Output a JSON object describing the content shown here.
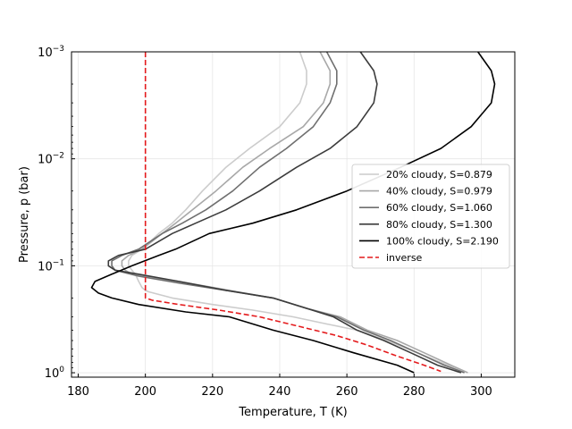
{
  "chart_data": {
    "type": "line",
    "xlabel": "Temperature, T (K)",
    "ylabel": "Pressure, p (bar)",
    "xlim": [
      178,
      310
    ],
    "ylim": [
      1.1,
      0.001
    ],
    "y_scale": "log",
    "y_inverted": true,
    "grid": true,
    "legend_position": "center-right",
    "x_ticks": [
      {
        "value": 180,
        "label": "180"
      },
      {
        "value": 200,
        "label": "200"
      },
      {
        "value": 220,
        "label": "220"
      },
      {
        "value": 240,
        "label": "240"
      },
      {
        "value": 260,
        "label": "260"
      },
      {
        "value": 280,
        "label": "280"
      },
      {
        "value": 300,
        "label": "300"
      }
    ],
    "y_ticks": [
      {
        "value": 0.001,
        "base": "10",
        "exp": "−3"
      },
      {
        "value": 0.01,
        "base": "10",
        "exp": "−2"
      },
      {
        "value": 0.1,
        "base": "10",
        "exp": "−1"
      },
      {
        "value": 1,
        "base": "10",
        "exp": "0"
      }
    ],
    "series": [
      {
        "name": "20% cloudy, S=0.879",
        "color": "#cccccc",
        "dash": "solid",
        "points": [
          [
            246,
            0.001
          ],
          [
            248,
            0.0015
          ],
          [
            248,
            0.002
          ],
          [
            246,
            0.003
          ],
          [
            240,
            0.005
          ],
          [
            231,
            0.008
          ],
          [
            224,
            0.012
          ],
          [
            217,
            0.02
          ],
          [
            212,
            0.03
          ],
          [
            208,
            0.04
          ],
          [
            204,
            0.05
          ],
          [
            199,
            0.07
          ],
          [
            196,
            0.08
          ],
          [
            195,
            0.09
          ],
          [
            195,
            0.1
          ],
          [
            196,
            0.11
          ],
          [
            197,
            0.12
          ],
          [
            198,
            0.14
          ],
          [
            199,
            0.16
          ],
          [
            200,
            0.17
          ],
          [
            201,
            0.175
          ],
          [
            208,
            0.2
          ],
          [
            220,
            0.23
          ],
          [
            232,
            0.26
          ],
          [
            244,
            0.3
          ],
          [
            254,
            0.35
          ],
          [
            263,
            0.4
          ],
          [
            272,
            0.5
          ],
          [
            281,
            0.65
          ],
          [
            290,
            0.85
          ],
          [
            295,
            1.0
          ]
        ]
      },
      {
        "name": "40% cloudy, S=0.979",
        "color": "#a8a8a8",
        "dash": "solid",
        "points": [
          [
            252,
            0.001
          ],
          [
            255,
            0.0015
          ],
          [
            255,
            0.002
          ],
          [
            253,
            0.003
          ],
          [
            247,
            0.005
          ],
          [
            237,
            0.008
          ],
          [
            229,
            0.012
          ],
          [
            221,
            0.02
          ],
          [
            214,
            0.03
          ],
          [
            209,
            0.04
          ],
          [
            205,
            0.05
          ],
          [
            199,
            0.07
          ],
          [
            195,
            0.08
          ],
          [
            193,
            0.09
          ],
          [
            193,
            0.1
          ],
          [
            194,
            0.11
          ],
          [
            196,
            0.12
          ],
          [
            199,
            0.125
          ],
          [
            210,
            0.14
          ],
          [
            225,
            0.17
          ],
          [
            238,
            0.2
          ],
          [
            248,
            0.25
          ],
          [
            258,
            0.3
          ],
          [
            266,
            0.4
          ],
          [
            275,
            0.5
          ],
          [
            283,
            0.65
          ],
          [
            291,
            0.85
          ],
          [
            296,
            1.0
          ]
        ]
      },
      {
        "name": "60% cloudy, S=1.060",
        "color": "#6f6f6f",
        "dash": "solid",
        "points": [
          [
            254,
            0.001
          ],
          [
            257,
            0.0015
          ],
          [
            257,
            0.002
          ],
          [
            255,
            0.003
          ],
          [
            250,
            0.005
          ],
          [
            242,
            0.008
          ],
          [
            234,
            0.012
          ],
          [
            226,
            0.02
          ],
          [
            218,
            0.03
          ],
          [
            211,
            0.04
          ],
          [
            205,
            0.05
          ],
          [
            198,
            0.07
          ],
          [
            193,
            0.08
          ],
          [
            190,
            0.09
          ],
          [
            190,
            0.1
          ],
          [
            191,
            0.11
          ],
          [
            198,
            0.125
          ],
          [
            210,
            0.145
          ],
          [
            224,
            0.17
          ],
          [
            238,
            0.2
          ],
          [
            248,
            0.25
          ],
          [
            257,
            0.3
          ],
          [
            265,
            0.4
          ],
          [
            273,
            0.5
          ],
          [
            281,
            0.65
          ],
          [
            289,
            0.85
          ],
          [
            295,
            1.0
          ]
        ]
      },
      {
        "name": "80% cloudy, S=1.300",
        "color": "#3c3c3c",
        "dash": "solid",
        "points": [
          [
            264,
            0.001
          ],
          [
            268,
            0.0015
          ],
          [
            269,
            0.002
          ],
          [
            268,
            0.003
          ],
          [
            263,
            0.005
          ],
          [
            255,
            0.008
          ],
          [
            245,
            0.012
          ],
          [
            234,
            0.02
          ],
          [
            224,
            0.03
          ],
          [
            215,
            0.04
          ],
          [
            208,
            0.05
          ],
          [
            200,
            0.07
          ],
          [
            192,
            0.08
          ],
          [
            189,
            0.09
          ],
          [
            189,
            0.1
          ],
          [
            191,
            0.11
          ],
          [
            198,
            0.12
          ],
          [
            210,
            0.14
          ],
          [
            224,
            0.17
          ],
          [
            238,
            0.2
          ],
          [
            248,
            0.25
          ],
          [
            256,
            0.3
          ],
          [
            263,
            0.4
          ],
          [
            271,
            0.5
          ],
          [
            279,
            0.65
          ],
          [
            287,
            0.85
          ],
          [
            294,
            1.0
          ]
        ]
      },
      {
        "name": "100% cloudy, S=2.190",
        "color": "#000000",
        "dash": "solid",
        "points": [
          [
            299,
            0.001
          ],
          [
            303,
            0.0015
          ],
          [
            304,
            0.002
          ],
          [
            303,
            0.003
          ],
          [
            297,
            0.005
          ],
          [
            288,
            0.008
          ],
          [
            276,
            0.012
          ],
          [
            260,
            0.02
          ],
          [
            245,
            0.03
          ],
          [
            232,
            0.04
          ],
          [
            219,
            0.05
          ],
          [
            209,
            0.07
          ],
          [
            204,
            0.08
          ],
          [
            196,
            0.1
          ],
          [
            190,
            0.12
          ],
          [
            185,
            0.14
          ],
          [
            184,
            0.16
          ],
          [
            186,
            0.18
          ],
          [
            190,
            0.2
          ],
          [
            198,
            0.23
          ],
          [
            212,
            0.27
          ],
          [
            225,
            0.3
          ],
          [
            238,
            0.4
          ],
          [
            250,
            0.5
          ],
          [
            262,
            0.65
          ],
          [
            275,
            0.85
          ],
          [
            280,
            1.0
          ]
        ]
      },
      {
        "name": "inverse",
        "color": "#e41a1c",
        "dash": "dashed",
        "points": [
          [
            200,
            0.001
          ],
          [
            200,
            0.01
          ],
          [
            200,
            0.1
          ],
          [
            200,
            0.19
          ],
          [
            200,
            0.2
          ],
          [
            202,
            0.21
          ],
          [
            210,
            0.23
          ],
          [
            222,
            0.26
          ],
          [
            234,
            0.3
          ],
          [
            246,
            0.37
          ],
          [
            257,
            0.45
          ],
          [
            266,
            0.55
          ],
          [
            275,
            0.7
          ],
          [
            283,
            0.85
          ],
          [
            288,
            0.97
          ]
        ]
      }
    ]
  }
}
